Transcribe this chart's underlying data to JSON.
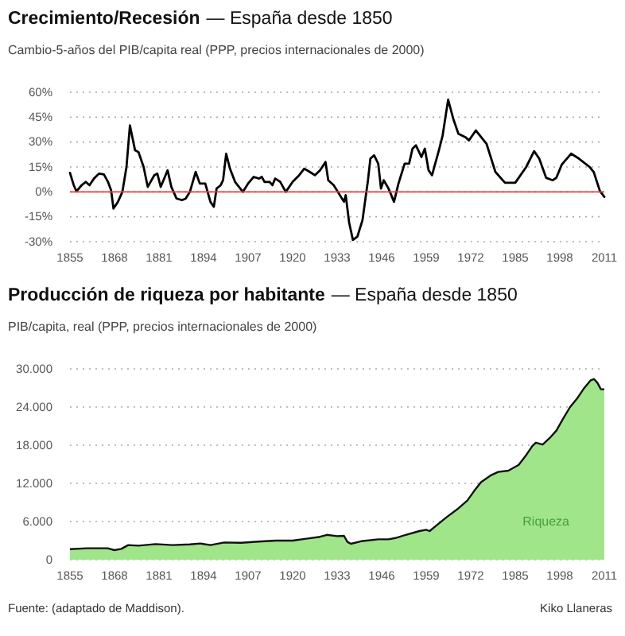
{
  "chart_data": [
    {
      "type": "line",
      "title": "Crecimiento/Recesión",
      "subtitle": "— España desde 1850",
      "ylabel": "Cambio-5-años del PIB/capita real (PPP, precios internacionales de 2000)",
      "xlim": [
        1855,
        2011
      ],
      "xticks": [
        1855,
        1868,
        1881,
        1894,
        1907,
        1920,
        1933,
        1946,
        1959,
        1972,
        1985,
        1998,
        2011
      ],
      "ylim": [
        -30,
        60
      ],
      "yticks": [
        {
          "value": -30,
          "label": "-30%"
        },
        {
          "value": -15,
          "label": "-15%"
        },
        {
          "value": 0,
          "label": "0%"
        },
        {
          "value": 15,
          "label": "15%"
        },
        {
          "value": 30,
          "label": "30%"
        },
        {
          "value": 45,
          "label": "45%"
        },
        {
          "value": 60,
          "label": "60%"
        }
      ],
      "grid": "y",
      "legend": false,
      "line_style": "solid",
      "ref_lines": [
        {
          "axis": "y",
          "value": 0,
          "color": "#e8403a"
        }
      ],
      "series": [
        {
          "color": "#000000",
          "x": [
            1855,
            1856.1,
            1856.9,
            1858.4,
            1859.6,
            1860.7,
            1862,
            1863.5,
            1864.9,
            1866.1,
            1867,
            1867.7,
            1869,
            1870.3,
            1871.5,
            1872.5,
            1874,
            1875,
            1876.5,
            1877.7,
            1879.6,
            1880.5,
            1881.5,
            1883.5,
            1884.6,
            1886.1,
            1887.7,
            1888.8,
            1890,
            1891.7,
            1892.9,
            1894.5,
            1896,
            1897,
            1897.8,
            1899,
            1899.7,
            1900.6,
            1901.7,
            1903.2,
            1905.5,
            1907,
            1908.6,
            1910.2,
            1911,
            1911.8,
            1913.3,
            1914.1,
            1914.9,
            1916.4,
            1918,
            1920,
            1921.9,
            1923.4,
            1925,
            1926.5,
            1928,
            1929.6,
            1930.4,
            1932,
            1935,
            1935.5,
            1936.5,
            1937.6,
            1938.9,
            1940.4,
            1942,
            1942.7,
            1943.8,
            1945,
            1945.8,
            1946.6,
            1948,
            1949.6,
            1950.9,
            1952.7,
            1954,
            1955,
            1956,
            1957.6,
            1958.6,
            1959.7,
            1960.7,
            1962.7,
            1963.8,
            1965.4,
            1966.9,
            1968.4,
            1970.4,
            1971.5,
            1973.5,
            1976.6,
            1979.2,
            1982,
            1985,
            1988.2,
            1990.5,
            1992,
            1994,
            1995.9,
            1997,
            1998.6,
            2001.3,
            2003.6,
            2006.7,
            2007.9,
            2009.7,
            2011
          ],
          "values": [
            11.5,
            4,
            0.3,
            4,
            6,
            4,
            8,
            11,
            10.5,
            6,
            1,
            -10,
            -6,
            0,
            15,
            40,
            25,
            24,
            15,
            3,
            10,
            11,
            3,
            13,
            3,
            -4,
            -5,
            -4,
            0,
            12,
            5,
            5,
            -6,
            -9,
            2,
            4,
            7,
            23,
            14,
            6,
            0,
            5,
            9,
            8,
            9,
            6,
            6,
            4,
            8,
            6,
            0,
            6,
            10,
            14,
            12,
            10,
            13,
            18,
            7,
            4,
            -6,
            -2,
            -18.5,
            -29,
            -27,
            -17,
            7,
            20,
            22,
            17,
            2,
            7,
            2,
            -6,
            5,
            17,
            17,
            26,
            28,
            21,
            26,
            13,
            10,
            25,
            34,
            55.5,
            44,
            35,
            33,
            31,
            37,
            29,
            12,
            5.5,
            5.5,
            15,
            24.5,
            20,
            8.5,
            7,
            8.5,
            16.5,
            23,
            20,
            15,
            12,
            0.6,
            -3
          ]
        }
      ]
    },
    {
      "type": "area",
      "title": "Producción de riqueza por habitante",
      "subtitle": "— España desde 1850",
      "ylabel": "PIB/capita, real (PPP, precios internacionales de 2000)",
      "xlim": [
        1855,
        2011
      ],
      "xticks": [
        1855,
        1868,
        1881,
        1894,
        1907,
        1920,
        1933,
        1946,
        1959,
        1972,
        1985,
        1998,
        2011
      ],
      "ylim": [
        0,
        30000
      ],
      "yticks": [
        {
          "value": 0,
          "label": "0"
        },
        {
          "value": 6000,
          "label": "6.000"
        },
        {
          "value": 12000,
          "label": "12.000"
        },
        {
          "value": 18000,
          "label": "18.000"
        },
        {
          "value": 24000,
          "label": "24.000"
        },
        {
          "value": 30000,
          "label": "30.000"
        }
      ],
      "grid": "y",
      "legend": false,
      "annotations": [
        "Fuente: (adaptado de Maddison).",
        "Kiko Llaneras"
      ],
      "series": [
        {
          "name": "Riqueza",
          "color": "#a0e58a",
          "x": [
            1855,
            1860,
            1866,
            1868,
            1870,
            1872,
            1875,
            1880,
            1885,
            1890,
            1893,
            1896,
            1900,
            1905,
            1910,
            1915,
            1920,
            1924,
            1928,
            1930,
            1933,
            1935,
            1936,
            1937,
            1940,
            1945,
            1948,
            1950,
            1953,
            1957,
            1959,
            1960,
            1962,
            1965,
            1968,
            1971,
            1973,
            1975,
            1978,
            1980,
            1983,
            1986,
            1988,
            1990,
            1991,
            1993,
            1995,
            1997,
            1999,
            2001,
            2003,
            2005,
            2007,
            2008,
            2009,
            2010,
            2011
          ],
          "values": [
            1650,
            1800,
            1800,
            1500,
            1700,
            2300,
            2200,
            2450,
            2300,
            2400,
            2550,
            2300,
            2700,
            2650,
            2850,
            3000,
            3000,
            3300,
            3600,
            3900,
            3700,
            3750,
            2800,
            2500,
            2900,
            3200,
            3200,
            3400,
            3900,
            4500,
            4700,
            4500,
            5400,
            6700,
            7900,
            9300,
            10800,
            12200,
            13300,
            13800,
            14000,
            14900,
            16300,
            17900,
            18400,
            18100,
            19100,
            20300,
            22200,
            24000,
            25300,
            26900,
            28200,
            28400,
            27800,
            26800,
            26800
          ]
        }
      ]
    }
  ]
}
